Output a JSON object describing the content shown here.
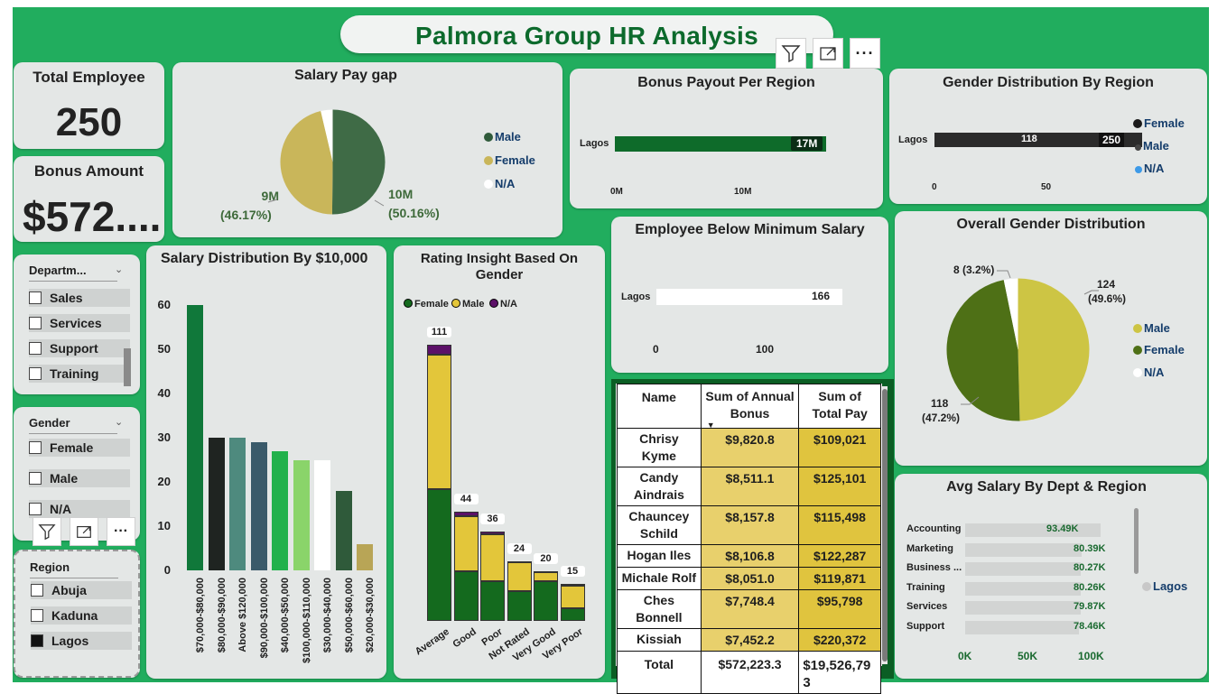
{
  "title": "Palmora Group HR Analysis",
  "kpis": {
    "total_employee_label": "Total Employee",
    "total_employee_value": "250",
    "bonus_label": "Bonus Amount",
    "bonus_value": "$572...."
  },
  "colors": {
    "canvas": "#21ad5e",
    "male_pay": "#3f6b46",
    "female_pay": "#c9b65a",
    "dark_green": "#0e6b2a",
    "olive": "#4e7016",
    "mustard": "#cdc544",
    "purple": "#4a0d56"
  },
  "salary_pay_gap": {
    "title": "Salary Pay gap",
    "legend": [
      "Male",
      "Female",
      "N/A"
    ],
    "male_label": "10M",
    "male_pct": "(50.16%)",
    "female_label": "9M",
    "female_pct": "(46.17%)",
    "chart_data": {
      "type": "pie",
      "categories": [
        "Male",
        "Female",
        "N/A"
      ],
      "values": [
        50.16,
        46.17,
        3.67
      ]
    }
  },
  "bonus_region": {
    "title": "Bonus Payout Per Region",
    "region": "Lagos",
    "value_label": "17M",
    "ticks": [
      "0M",
      "10M"
    ],
    "chart_data": {
      "type": "bar",
      "categories": [
        "Lagos"
      ],
      "values": [
        17
      ],
      "xlim": [
        0,
        20
      ]
    }
  },
  "gender_region": {
    "title": "Gender Distribution By Region",
    "region": "Lagos",
    "female_value": "118",
    "total_value": "250",
    "ticks": [
      "0",
      "50"
    ],
    "legend": [
      "Female",
      "Male",
      "N/A"
    ],
    "chart_data": {
      "type": "bar",
      "categories": [
        "Lagos"
      ],
      "series": [
        {
          "name": "Female",
          "values": [
            118
          ]
        },
        {
          "name": "Male",
          "values": [
            124
          ]
        },
        {
          "name": "N/A",
          "values": [
            8
          ]
        }
      ]
    }
  },
  "salary_dist": {
    "title": "Salary Distribution By $10,000",
    "yticks": [
      "60",
      "50",
      "40",
      "30",
      "20",
      "10",
      "0"
    ],
    "chart_data": {
      "type": "bar",
      "categories": [
        "$70,000-$80,000",
        "$80,000-$90,000",
        "Above $120,000",
        "$90,000-$100,000",
        "$40,000-$50,000",
        "$100,000-$110,000",
        "$30,000-$40,000",
        "$50,000-$60,000",
        "$20,000-$30,000"
      ],
      "values": [
        60,
        30,
        30,
        29,
        27,
        25,
        25,
        18,
        6
      ],
      "ylim": [
        0,
        60
      ],
      "colors": [
        "#10783a",
        "#1f2421",
        "#4e8a7e",
        "#3a5a6a",
        "#22b14c",
        "#8ad46a",
        "#ffffff",
        "#2f5a3a",
        "#b8a556"
      ]
    }
  },
  "rating": {
    "title_line1": "Rating Insight Based On",
    "title_line2": "Gender",
    "legend": [
      "Female",
      "Male",
      "N/A"
    ],
    "totals": [
      "111",
      "44",
      "36",
      "24",
      "20",
      "15"
    ],
    "chart_data": {
      "type": "bar",
      "categories": [
        "Average",
        "Good",
        "Poor",
        "Not Rated",
        "Very Good",
        "Very Poor"
      ],
      "series": [
        {
          "name": "Female",
          "values": [
            53,
            20,
            16,
            12,
            16,
            5
          ]
        },
        {
          "name": "Male",
          "values": [
            54,
            22,
            19,
            12,
            4,
            9
          ]
        },
        {
          "name": "N/A",
          "values": [
            4,
            2,
            1,
            0,
            0,
            1
          ]
        }
      ]
    }
  },
  "below_min": {
    "title": "Employee Below Minimum Salary",
    "region": "Lagos",
    "value_label": "166",
    "ticks": [
      "0",
      "100"
    ],
    "chart_data": {
      "type": "bar",
      "categories": [
        "Lagos"
      ],
      "values": [
        166
      ],
      "xlim": [
        0,
        200
      ]
    }
  },
  "overall_gender": {
    "title": "Overall Gender Distribution",
    "na_label": "8 (3.2%)",
    "male_label": "124",
    "male_pct": "(49.6%)",
    "female_label": "118",
    "female_pct": "(47.2%)",
    "legend": [
      "Male",
      "Female",
      "N/A"
    ],
    "chart_data": {
      "type": "pie",
      "categories": [
        "Male",
        "Female",
        "N/A"
      ],
      "values": [
        124,
        118,
        8
      ]
    }
  },
  "avg_salary": {
    "title": "Avg Salary By Dept & Region",
    "legend": "Lagos",
    "ticks": [
      "0K",
      "50K",
      "100K"
    ],
    "chart_data": {
      "type": "bar",
      "categories": [
        "Accounting",
        "Marketing",
        "Business ...",
        "Training",
        "Services",
        "Support"
      ],
      "values": [
        93.49,
        80.39,
        80.27,
        80.26,
        79.87,
        78.46
      ],
      "labels": [
        "93.49K",
        "80.39K",
        "80.27K",
        "80.26K",
        "79.87K",
        "78.46K"
      ],
      "xlim": [
        0,
        100
      ]
    }
  },
  "slicers": {
    "department": {
      "title": "Departm...",
      "items": [
        "Sales",
        "Services",
        "Support",
        "Training"
      ]
    },
    "gender": {
      "title": "Gender",
      "items": [
        "Female",
        "Male",
        "N/A"
      ]
    },
    "region": {
      "title": "Region",
      "items": [
        "Abuja",
        "Kaduna",
        "Lagos"
      ]
    }
  },
  "table": {
    "headers": [
      "Name",
      "Sum of Annual Bonus",
      "Sum of Total Pay"
    ],
    "rows": [
      {
        "name": "Chrisy Kyme",
        "bonus": "$9,820.8",
        "pay": "$109,021"
      },
      {
        "name": "Candy Aindrais",
        "bonus": "$8,511.1",
        "pay": "$125,101"
      },
      {
        "name": "Chauncey Schild",
        "bonus": "$8,157.8",
        "pay": "$115,498"
      },
      {
        "name": "Hogan Iles",
        "bonus": "$8,106.8",
        "pay": "$122,287"
      },
      {
        "name": "Michale Rolf",
        "bonus": "$8,051.0",
        "pay": "$119,871"
      },
      {
        "name": "Ches Bonnell",
        "bonus": "$7,748.4",
        "pay": "$95,798"
      },
      {
        "name": "Kissiah",
        "bonus": "$7,452.2",
        "pay": "$220,372"
      }
    ],
    "total_label": "Total",
    "total_bonus": "$572,223.3",
    "total_pay": "$19,526,793"
  }
}
